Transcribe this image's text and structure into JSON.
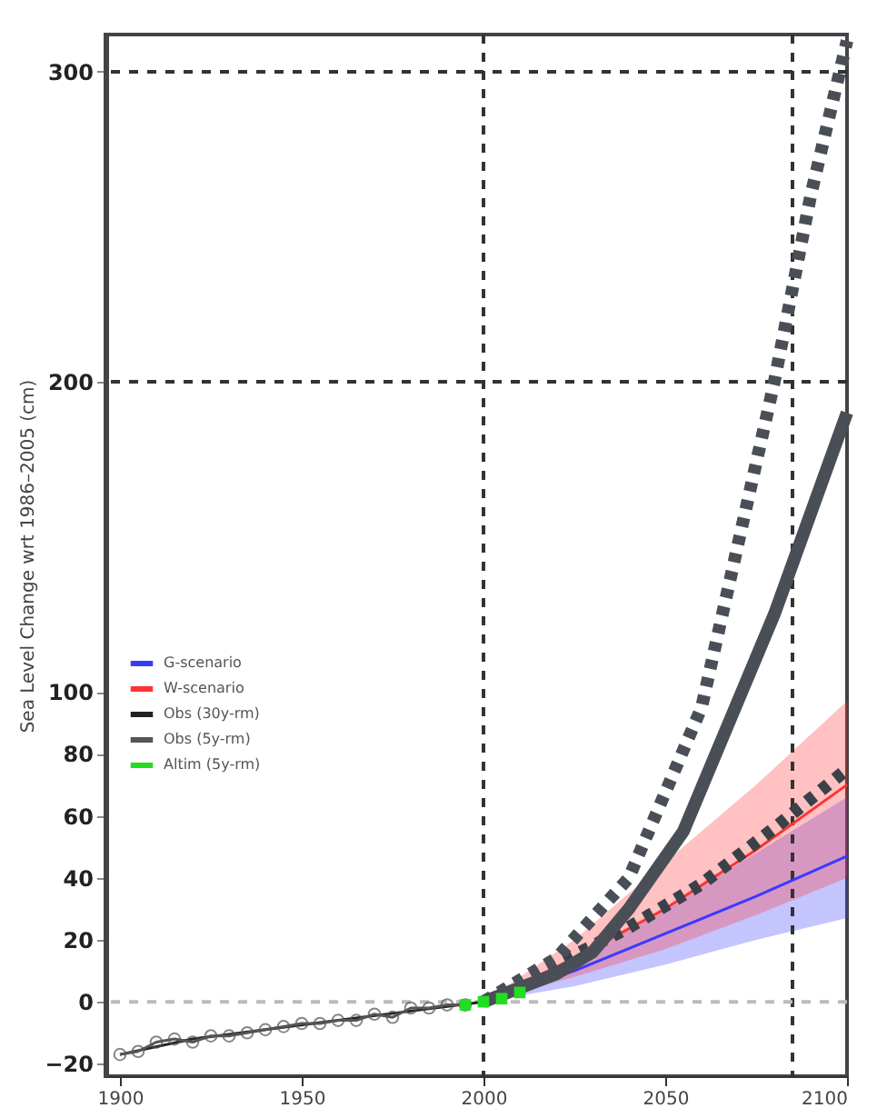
{
  "chart_data": {
    "type": "line",
    "ylabel": "Sea Level Change wrt 1986–2005 (cm)",
    "xlim": [
      1896,
      2100
    ],
    "xticks": [
      1900,
      1950,
      2000,
      2050,
      2100
    ],
    "ylim": [
      -24,
      312
    ],
    "yticks": [
      -20,
      0,
      20,
      40,
      60,
      80,
      100,
      200,
      300
    ],
    "legend": "left",
    "grid": false,
    "ref_lines": [
      {
        "axis": "x",
        "value": 2000,
        "line_style": "dotted",
        "color": "#333333"
      },
      {
        "axis": "x",
        "value": 2085,
        "line_style": "dotted",
        "color": "#333333"
      },
      {
        "axis": "y",
        "value": 0,
        "line_style": "dotted",
        "color": "#bbbbbb"
      },
      {
        "axis": "y",
        "value": 200,
        "line_style": "dotted",
        "color": "#333333"
      },
      {
        "axis": "y",
        "value": 300,
        "line_style": "dotted",
        "color": "#333333"
      }
    ],
    "series": [
      {
        "name": "G-scenario",
        "color": "#3a3aff",
        "line_style": "solid",
        "x": [
          2000,
          2025,
          2050,
          2075,
          2100
        ],
        "values": [
          0,
          10,
          22,
          34,
          47
        ],
        "lower": [
          0,
          5,
          12,
          20,
          27
        ],
        "upper": [
          0,
          14,
          30,
          48,
          66
        ]
      },
      {
        "name": "W-scenario",
        "color": "#ff3333",
        "line_style": "solid",
        "x": [
          2000,
          2025,
          2050,
          2075,
          2100
        ],
        "values": [
          0,
          14,
          30,
          49,
          70
        ],
        "lower": [
          0,
          8,
          17,
          28,
          40
        ],
        "upper": [
          0,
          20,
          45,
          70,
          97
        ]
      },
      {
        "name": "Obs (30y-rm)",
        "color": "#222222",
        "line_style": "solid",
        "x": [
          1900,
          1920,
          1940,
          1960,
          1980,
          2000
        ],
        "values": [
          -17,
          -12,
          -9,
          -6,
          -3,
          0
        ]
      },
      {
        "name": "Obs (5y-rm)",
        "color": "#555555",
        "line_style": "solid",
        "marker": "circle",
        "x": [
          1900,
          1905,
          1910,
          1915,
          1920,
          1925,
          1930,
          1935,
          1940,
          1945,
          1950,
          1955,
          1960,
          1965,
          1970,
          1975,
          1980,
          1985,
          1990,
          1995
        ],
        "values": [
          -17,
          -16,
          -13,
          -12,
          -13,
          -11,
          -11,
          -10,
          -9,
          -8,
          -7,
          -7,
          -6,
          -6,
          -4,
          -5,
          -2,
          -2,
          -1,
          -1
        ]
      },
      {
        "name": "Altim (5y-rm)",
        "color": "#22dd22",
        "type": "scatter",
        "marker": "square",
        "x": [
          1995,
          2000,
          2005,
          2010
        ],
        "values": [
          -1,
          0,
          1,
          3
        ]
      },
      {
        "color": "#3c4048",
        "line_style": "dotted",
        "x": [
          2000,
          2020,
          2040,
          2060,
          2080,
          2100
        ],
        "values": [
          0,
          12,
          24,
          38,
          56,
          75
        ]
      },
      {
        "color": "#4a4f57",
        "line_style": "solid",
        "x": [
          2000,
          2020,
          2030,
          2040,
          2055,
          2080,
          2100
        ],
        "values": [
          0,
          9,
          16,
          30,
          55,
          125,
          190
        ]
      },
      {
        "color": "#4a4f57",
        "line_style": "dotted",
        "x": [
          2000,
          2020,
          2040,
          2060,
          2080,
          2090,
          2100
        ],
        "values": [
          0,
          14,
          40,
          95,
          200,
          260,
          310
        ]
      }
    ]
  }
}
